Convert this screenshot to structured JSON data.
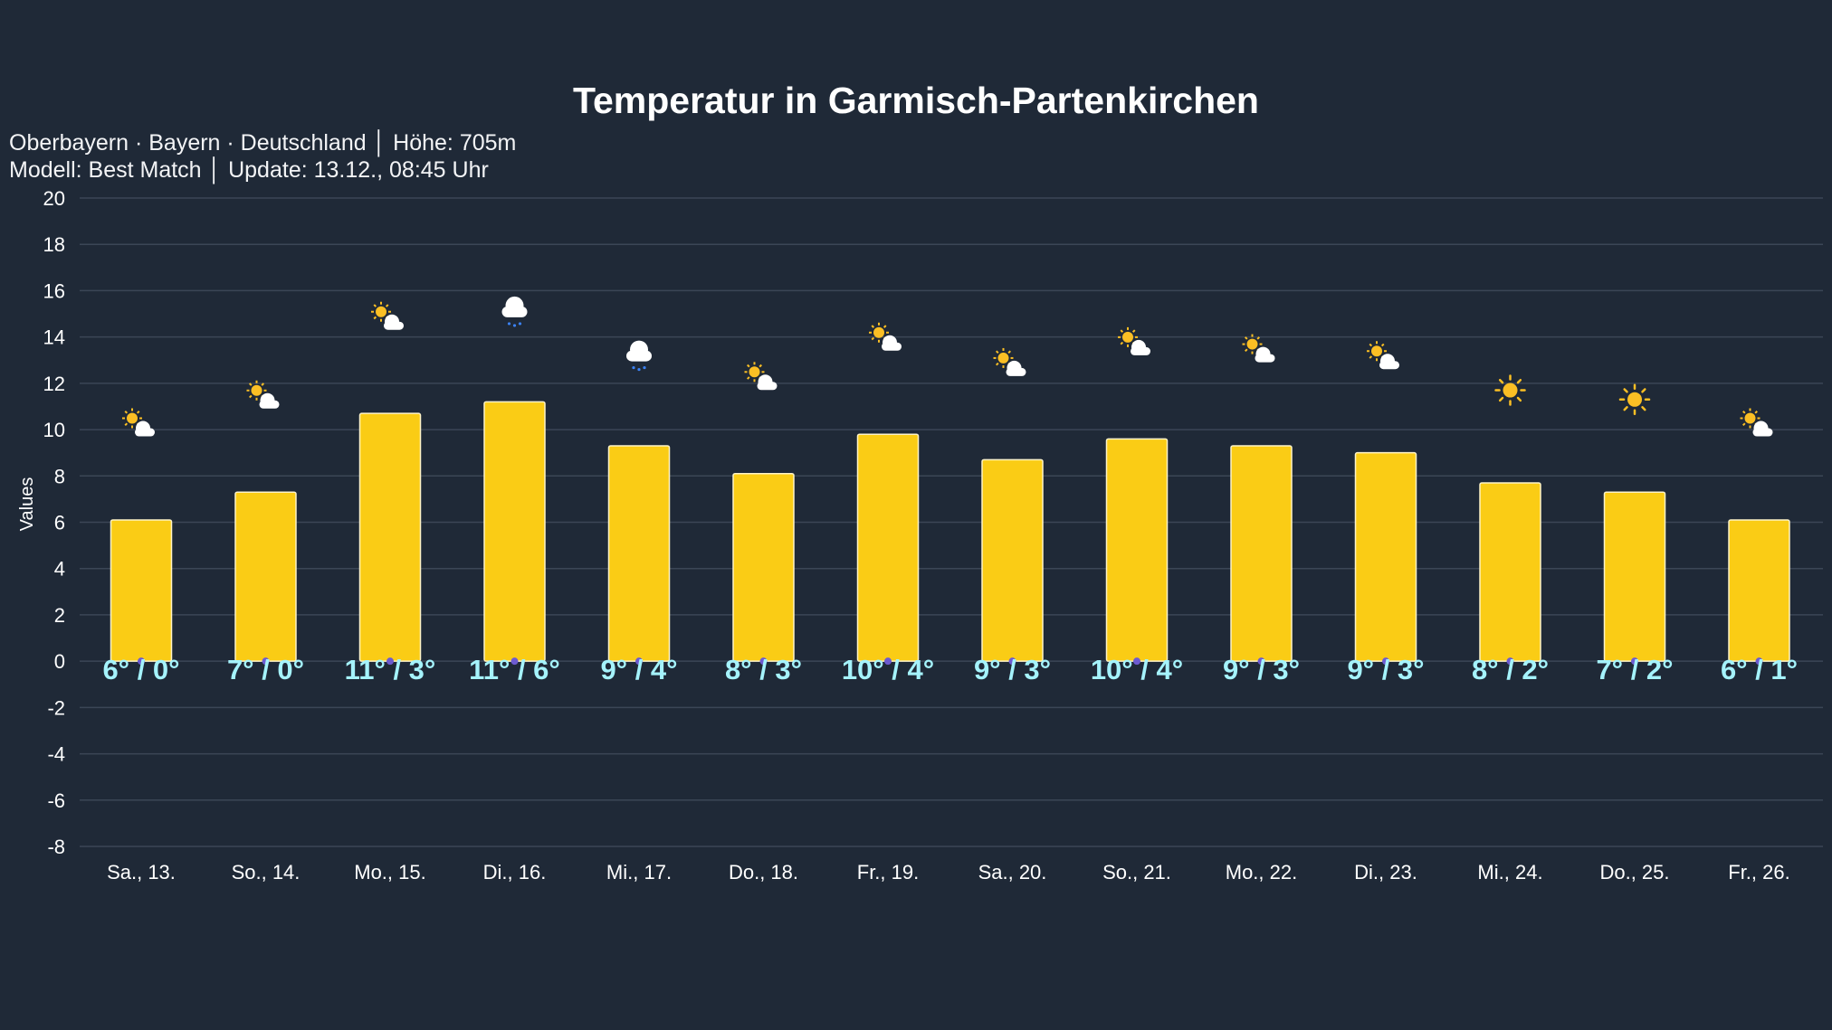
{
  "header": {
    "title": "Temperatur in Garmisch-Partenkirchen",
    "subtitle_line1": "Oberbayern · Bayern · Deutschland │ Höhe: 705m",
    "subtitle_line2": "Modell: Best Match │ Update: 13.12., 08:45 Uhr"
  },
  "colors": {
    "background": "#1f2937",
    "bar": "#facc15",
    "bar_border": "#fef3c7",
    "grid": "#3b4656",
    "label": "#a5f3fc",
    "text": "#ffffff",
    "rain": "#3b82f6",
    "sun": "#fbbf24"
  },
  "chart_data": {
    "type": "bar",
    "title": "Temperatur in Garmisch-Partenkirchen",
    "xlabel": "",
    "ylabel": "Values",
    "ylim": [
      -8,
      20
    ],
    "yticks": [
      20,
      18,
      16,
      14,
      12,
      10,
      8,
      6,
      4,
      2,
      0,
      -2,
      -4,
      -6,
      -8
    ],
    "grid": true,
    "categories": [
      "Sa., 13.",
      "So., 14.",
      "Mo., 15.",
      "Di., 16.",
      "Mi., 17.",
      "Do., 18.",
      "Fr., 19.",
      "Sa., 20.",
      "So., 21.",
      "Mo., 22.",
      "Di., 23.",
      "Mi., 24.",
      "Do., 25.",
      "Fr., 26."
    ],
    "values": [
      6.1,
      7.3,
      10.7,
      11.2,
      9.3,
      8.1,
      9.8,
      8.7,
      9.6,
      9.3,
      9.0,
      7.7,
      7.3,
      6.1
    ],
    "data_labels": [
      "6° / 0°",
      "7° / 0°",
      "11° / 3°",
      "11° / 6°",
      "9° / 4°",
      "8° / 3°",
      "10° / 4°",
      "9° / 3°",
      "10° / 4°",
      "9° / 3°",
      "9° / 3°",
      "8° / 2°",
      "7° / 2°",
      "6° / 1°"
    ],
    "weather_icons": [
      "partly-cloudy",
      "partly-cloudy",
      "partly-cloudy",
      "rain-cloud",
      "rain-cloud",
      "partly-cloudy",
      "partly-cloudy",
      "partly-cloudy",
      "partly-cloudy",
      "partly-cloudy",
      "partly-cloudy",
      "sun",
      "sun",
      "partly-cloudy"
    ]
  }
}
